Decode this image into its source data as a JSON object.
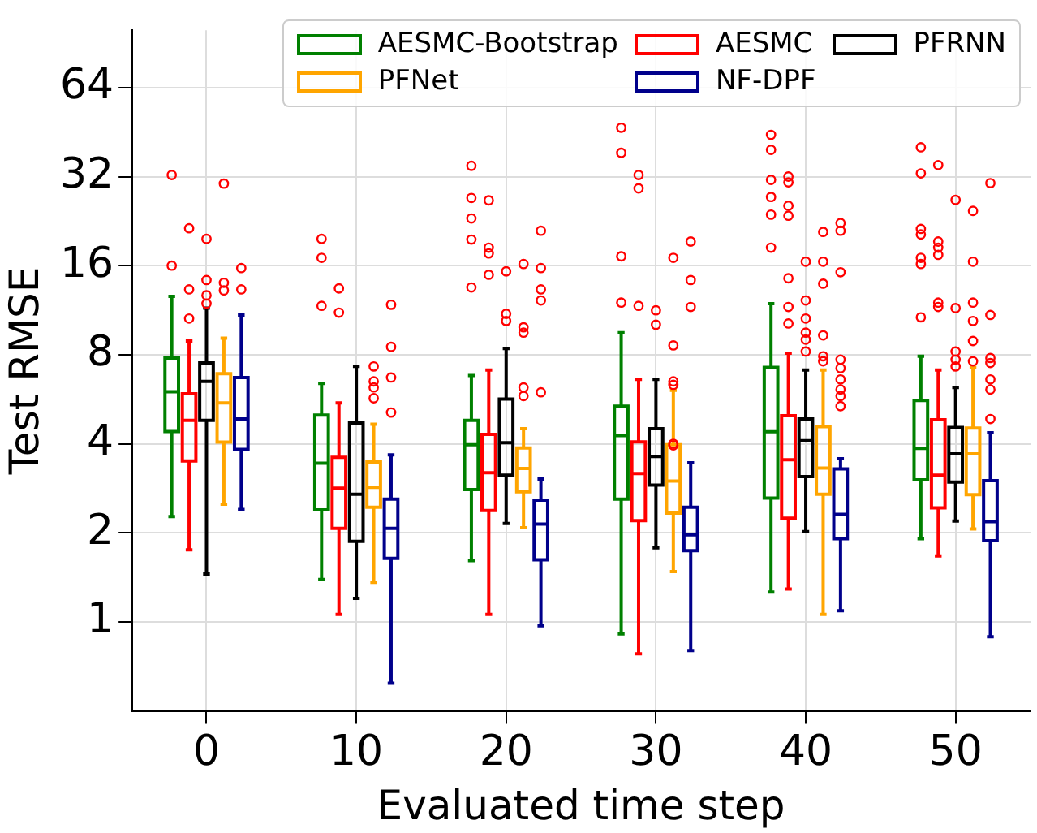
{
  "chart_data": {
    "type": "box",
    "xlabel": "Evaluated time step",
    "ylabel": "Test RMSE",
    "categories": [
      "0",
      "10",
      "20",
      "30",
      "40",
      "50"
    ],
    "log": "y",
    "ylim": [
      0.5,
      100
    ],
    "yticks": [
      1,
      2,
      4,
      8,
      16,
      32,
      64
    ],
    "grid": true,
    "legend": "top right",
    "series": [
      {
        "name": "AESMC-Bootstrap",
        "color": "#008000",
        "boxes": [
          {
            "low": 2.27,
            "q1": 4.4,
            "median": 6.0,
            "q3": 7.8,
            "high": 12.6,
            "outliers": [
              32.4,
              16
            ]
          },
          {
            "low": 1.39,
            "q1": 2.39,
            "median": 3.44,
            "q3": 5.0,
            "high": 6.4,
            "outliers": [
              19.7,
              17.0,
              11.7
            ]
          },
          {
            "low": 1.61,
            "q1": 2.8,
            "median": 3.97,
            "q3": 4.8,
            "high": 6.8,
            "outliers": [
              34.8,
              27.1,
              23.1,
              19.6,
              13.5
            ]
          },
          {
            "low": 0.91,
            "q1": 2.6,
            "median": 4.26,
            "q3": 5.36,
            "high": 9.5,
            "outliers": [
              46.8,
              38.5,
              17.2,
              12.0
            ]
          },
          {
            "low": 1.26,
            "q1": 2.62,
            "median": 4.39,
            "q3": 7.25,
            "high": 11.9,
            "outliers": [
              44.3,
              39.4,
              31.2,
              27.3,
              23.8,
              18.4
            ]
          },
          {
            "low": 1.91,
            "q1": 3.02,
            "median": 3.86,
            "q3": 5.6,
            "high": 7.9,
            "outliers": [
              40.2,
              32.8,
              21.3,
              20.4,
              17.0,
              16.2,
              10.7
            ]
          }
        ]
      },
      {
        "name": "AESMC",
        "color": "#ff0000",
        "boxes": [
          {
            "low": 1.75,
            "q1": 3.5,
            "median": 4.8,
            "q3": 5.9,
            "high": 8.9,
            "outliers": [
              21.4,
              13.3,
              10.6
            ]
          },
          {
            "low": 1.06,
            "q1": 2.07,
            "median": 2.83,
            "q3": 3.6,
            "high": 5.5,
            "outliers": [
              13.4,
              11.1
            ]
          },
          {
            "low": 1.06,
            "q1": 2.38,
            "median": 3.19,
            "q3": 4.3,
            "high": 7.1,
            "outliers": [
              26.6,
              18.4,
              17.6,
              14.9
            ]
          },
          {
            "low": 0.78,
            "q1": 2.2,
            "median": 3.17,
            "q3": 4.06,
            "high": 6.6,
            "outliers": [
              32.4,
              29.2,
              11.7
            ]
          },
          {
            "low": 1.29,
            "q1": 2.24,
            "median": 3.53,
            "q3": 4.98,
            "high": 8.1,
            "outliers": [
              32.0,
              30.6,
              25.5,
              23.6,
              14.5,
              11.6,
              10.2
            ]
          },
          {
            "low": 1.67,
            "q1": 2.43,
            "median": 3.13,
            "q3": 4.82,
            "high": 7.1,
            "outliers": [
              35.0,
              19.3,
              18.4,
              17.4,
              12.0,
              11.6
            ]
          }
        ]
      },
      {
        "name": "PFRNN",
        "color": "#000000",
        "boxes": [
          {
            "low": 1.45,
            "q1": 4.8,
            "median": 6.5,
            "q3": 7.5,
            "high": 11.5,
            "outliers": [
              19.7,
              14.3,
              12.7,
              11.9
            ]
          },
          {
            "low": 1.2,
            "q1": 1.87,
            "median": 2.7,
            "q3": 4.7,
            "high": 7.3
          },
          {
            "low": 2.15,
            "q1": 3.13,
            "median": 4.03,
            "q3": 5.66,
            "high": 8.4,
            "outliers": [
              15.3,
              11.0,
              10.4
            ]
          },
          {
            "low": 1.78,
            "q1": 2.9,
            "median": 3.62,
            "q3": 4.5,
            "high": 6.6,
            "outliers": [
              11.3,
              10.1
            ]
          },
          {
            "low": 2.02,
            "q1": 3.1,
            "median": 4.1,
            "q3": 4.85,
            "high": 7.1,
            "outliers": [
              16.5,
              12.2,
              10.6,
              9.5,
              9.0,
              8.2
            ]
          },
          {
            "low": 2.19,
            "q1": 2.97,
            "median": 3.7,
            "q3": 4.54,
            "high": 6.2,
            "outliers": [
              26.7,
              11.5,
              8.2,
              7.7,
              7.3
            ]
          }
        ]
      },
      {
        "name": "PFNet",
        "color": "#ffa500",
        "boxes": [
          {
            "low": 2.5,
            "q1": 4.05,
            "median": 5.5,
            "q3": 6.9,
            "high": 9.1,
            "outliers": [
              30.3,
              14.0,
              13.2
            ]
          },
          {
            "low": 1.36,
            "q1": 2.44,
            "median": 2.85,
            "q3": 3.47,
            "high": 4.66,
            "outliers": [
              7.3,
              6.5,
              6.2,
              5.7
            ]
          },
          {
            "low": 2.08,
            "q1": 2.75,
            "median": 3.3,
            "q3": 3.87,
            "high": 4.5,
            "outliers": [
              16.2,
              9.9,
              9.5,
              6.2,
              5.8
            ]
          },
          {
            "low": 1.48,
            "q1": 2.33,
            "median": 2.99,
            "q3": 3.97,
            "high": 6.06,
            "outliers": [
              17.0,
              8.6,
              6.5,
              6.33,
              4.0,
              3.95
            ]
          },
          {
            "low": 1.06,
            "q1": 2.7,
            "median": 3.31,
            "q3": 4.57,
            "high": 7.1,
            "outliers": [
              20.8,
              16.5,
              13.9,
              9.3,
              7.9,
              7.6
            ]
          },
          {
            "low": 2.06,
            "q1": 2.69,
            "median": 3.7,
            "q3": 4.52,
            "high": 7.25,
            "outliers": [
              24.5,
              16.5,
              12.0,
              10.4,
              8.9,
              7.6
            ]
          }
        ]
      },
      {
        "name": "NF-DPF",
        "color": "#00008b",
        "boxes": [
          {
            "low": 2.4,
            "q1": 3.83,
            "median": 4.85,
            "q3": 6.7,
            "high": 10.9,
            "outliers": [
              15.7,
              13.3
            ]
          },
          {
            "low": 0.62,
            "q1": 1.64,
            "median": 2.07,
            "q3": 2.6,
            "high": 3.67,
            "outliers": [
              11.8,
              8.5,
              6.7,
              5.1
            ]
          },
          {
            "low": 0.97,
            "q1": 1.62,
            "median": 2.14,
            "q3": 2.58,
            "high": 3.04,
            "outliers": [
              21.0,
              15.7,
              13.3,
              12.2,
              5.97
            ]
          },
          {
            "low": 0.8,
            "q1": 1.74,
            "median": 1.97,
            "q3": 2.44,
            "high": 3.45,
            "outliers": [
              19.3,
              14.3,
              11.6
            ]
          },
          {
            "low": 1.09,
            "q1": 1.91,
            "median": 2.31,
            "q3": 3.29,
            "high": 3.56,
            "outliers": [
              22.3,
              21.0,
              15.2,
              7.7,
              7.2,
              6.6,
              6.1,
              5.8,
              5.36
            ]
          },
          {
            "low": 0.89,
            "q1": 1.88,
            "median": 2.18,
            "q3": 3.0,
            "high": 4.36,
            "outliers": [
              30.4,
              10.9,
              7.8,
              7.5,
              6.6,
              6.1,
              4.85
            ]
          }
        ]
      }
    ]
  }
}
